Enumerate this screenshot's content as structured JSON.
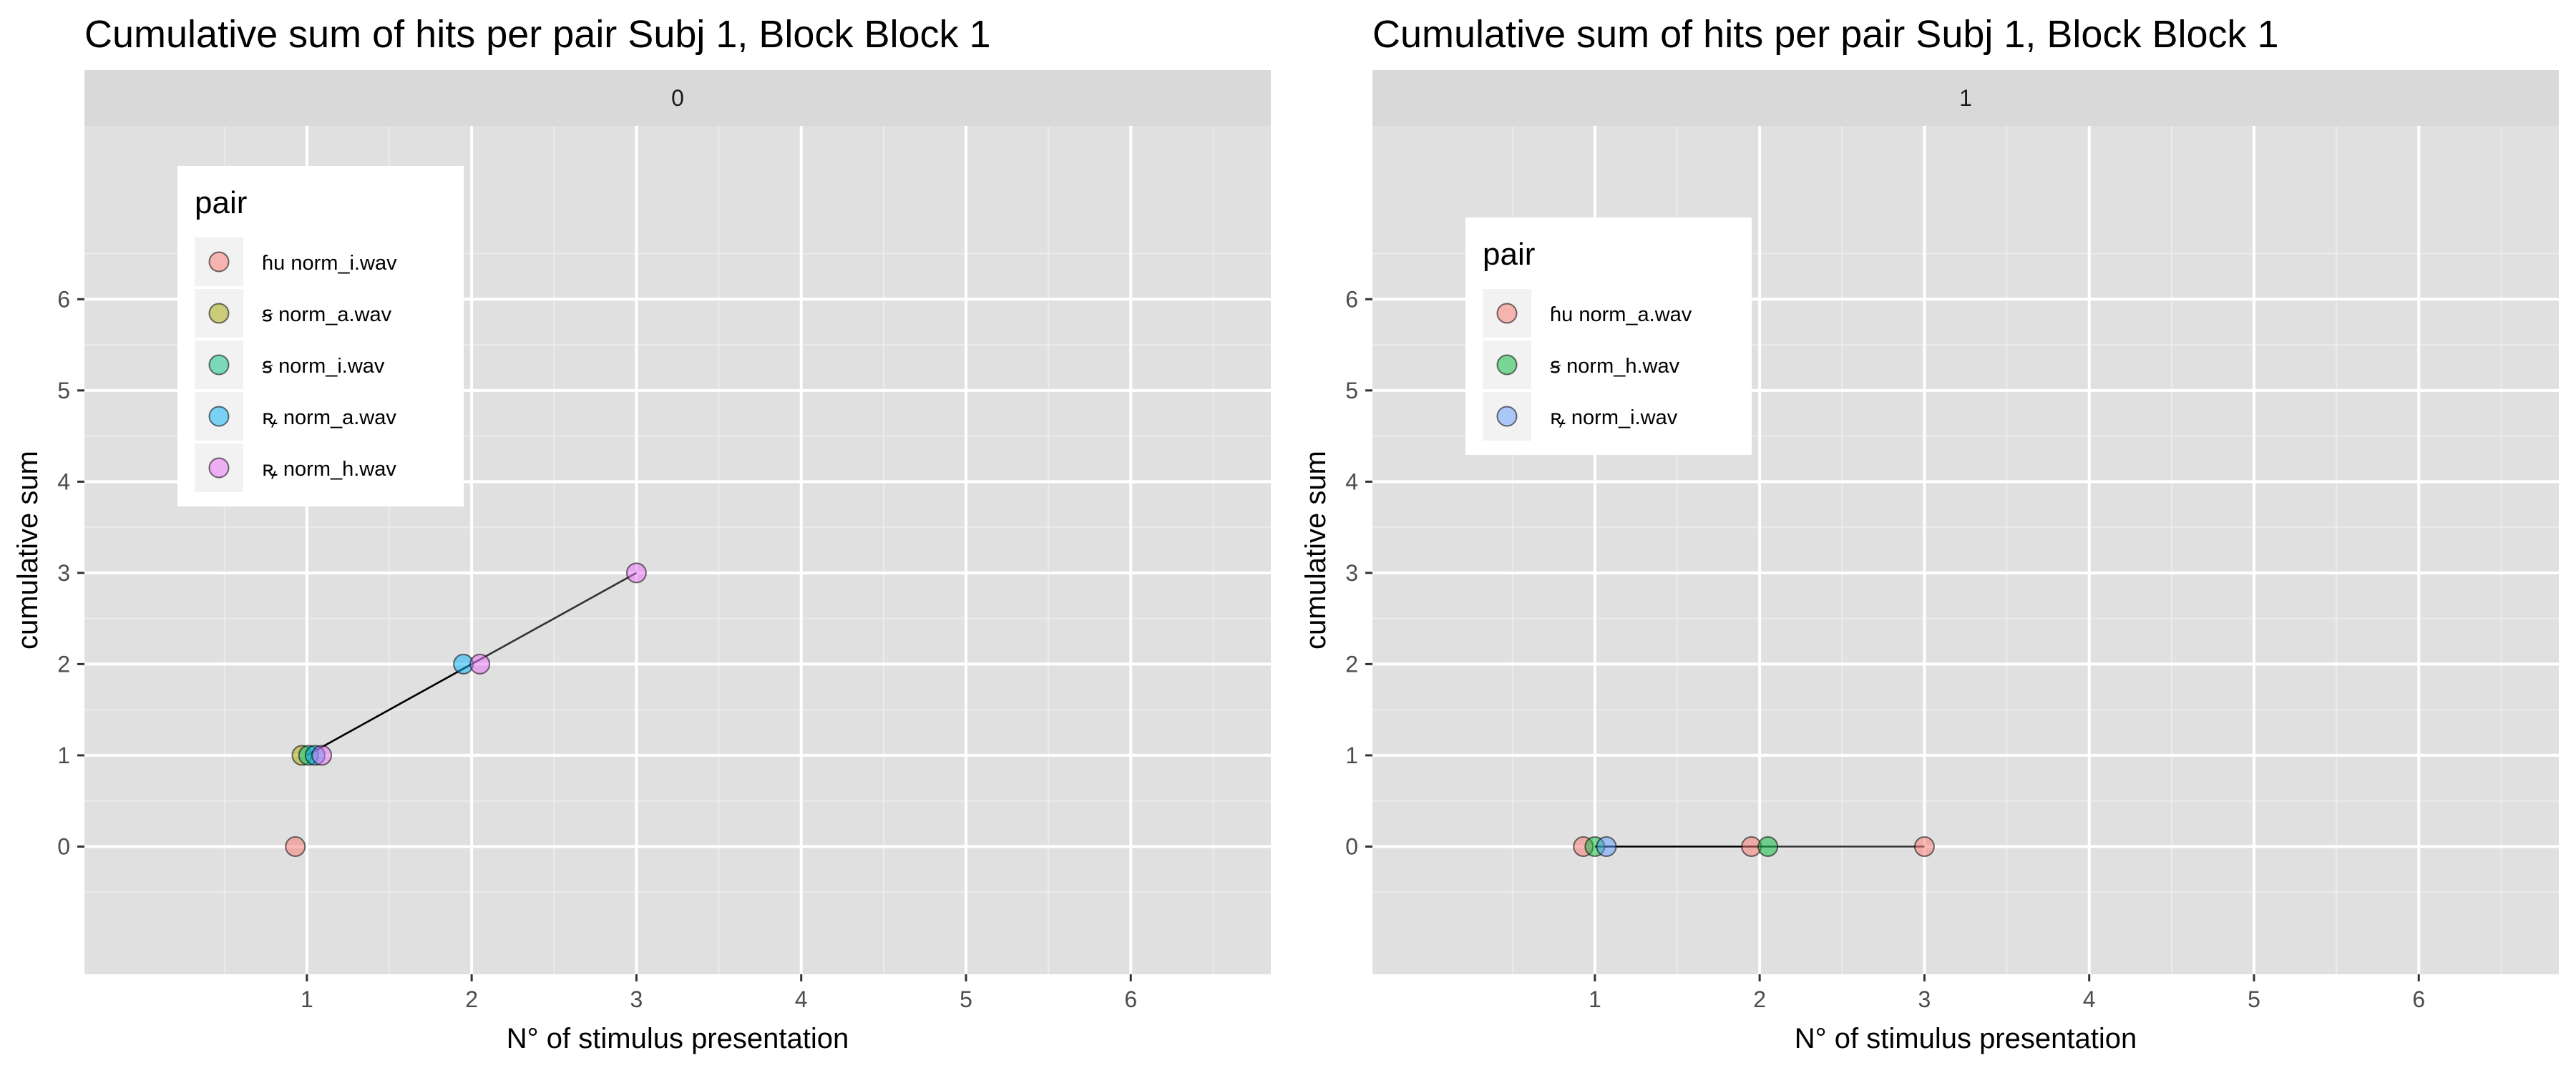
{
  "chart_data": [
    {
      "type": "scatter",
      "title": "Cumulative sum of hits per pair Subj 1, Block Block 1",
      "facet_label": "0",
      "xlabel": "N° of stimulus presentation",
      "ylabel": "cumulative sum",
      "x_ticks": [
        1,
        2,
        3,
        4,
        5,
        6
      ],
      "y_ticks": [
        0,
        1,
        2,
        3,
        4,
        5,
        6
      ],
      "xlim": [
        -0.35,
        6.85
      ],
      "ylim": [
        -1.4,
        7.9
      ],
      "grid": true,
      "legend_title": "pair",
      "legend_position": "top-left-inside",
      "series": [
        {
          "name": "ɦu norm_i.wav",
          "color": "#F8766D",
          "points": [
            [
              0.93,
              0
            ]
          ]
        },
        {
          "name": "ꞩ norm_a.wav",
          "color": "#A3A500",
          "points": [
            [
              0.97,
              1
            ]
          ]
        },
        {
          "name": "ꞩ norm_i.wav",
          "color": "#00BF7D",
          "points": [
            [
              1.01,
              1
            ]
          ]
        },
        {
          "name": "ꝶ norm_a.wav",
          "color": "#00B0F6",
          "points": [
            [
              1.05,
              1
            ],
            [
              1.95,
              2
            ]
          ]
        },
        {
          "name": "ꝶ norm_h.wav",
          "color": "#E76BF3",
          "points": [
            [
              1.09,
              1
            ],
            [
              2.05,
              2
            ],
            [
              3.0,
              3
            ]
          ]
        }
      ],
      "lines": [
        {
          "points": [
            [
              1.0,
              1
            ],
            [
              2.0,
              2
            ]
          ],
          "color": "#000000"
        },
        {
          "points": [
            [
              2.0,
              2
            ],
            [
              3.0,
              3
            ]
          ],
          "color": "#333333"
        }
      ]
    },
    {
      "type": "scatter",
      "title": "Cumulative sum of hits per pair Subj 1, Block Block 1",
      "facet_label": "1",
      "xlabel": "N° of stimulus presentation",
      "ylabel": "cumulative sum",
      "x_ticks": [
        1,
        2,
        3,
        4,
        5,
        6
      ],
      "y_ticks": [
        0,
        1,
        2,
        3,
        4,
        5,
        6
      ],
      "xlim": [
        -0.35,
        6.85
      ],
      "ylim": [
        -1.4,
        7.9
      ],
      "grid": true,
      "legend_title": "pair",
      "legend_position": "top-left-inside",
      "series": [
        {
          "name": "ɦu norm_a.wav",
          "color": "#F8766D",
          "points": [
            [
              0.93,
              0
            ],
            [
              1.95,
              0
            ],
            [
              3.0,
              0
            ]
          ]
        },
        {
          "name": "ꞩ norm_h.wav",
          "color": "#00BA38",
          "points": [
            [
              1.0,
              0
            ],
            [
              2.05,
              0
            ]
          ]
        },
        {
          "name": "ꝶ norm_i.wav",
          "color": "#619CFF",
          "points": [
            [
              1.07,
              0
            ]
          ]
        }
      ],
      "lines": [
        {
          "points": [
            [
              1.0,
              0
            ],
            [
              2.0,
              0
            ]
          ],
          "color": "#000000"
        },
        {
          "points": [
            [
              2.0,
              0
            ],
            [
              3.0,
              0
            ]
          ],
          "color": "#333333"
        }
      ]
    }
  ]
}
